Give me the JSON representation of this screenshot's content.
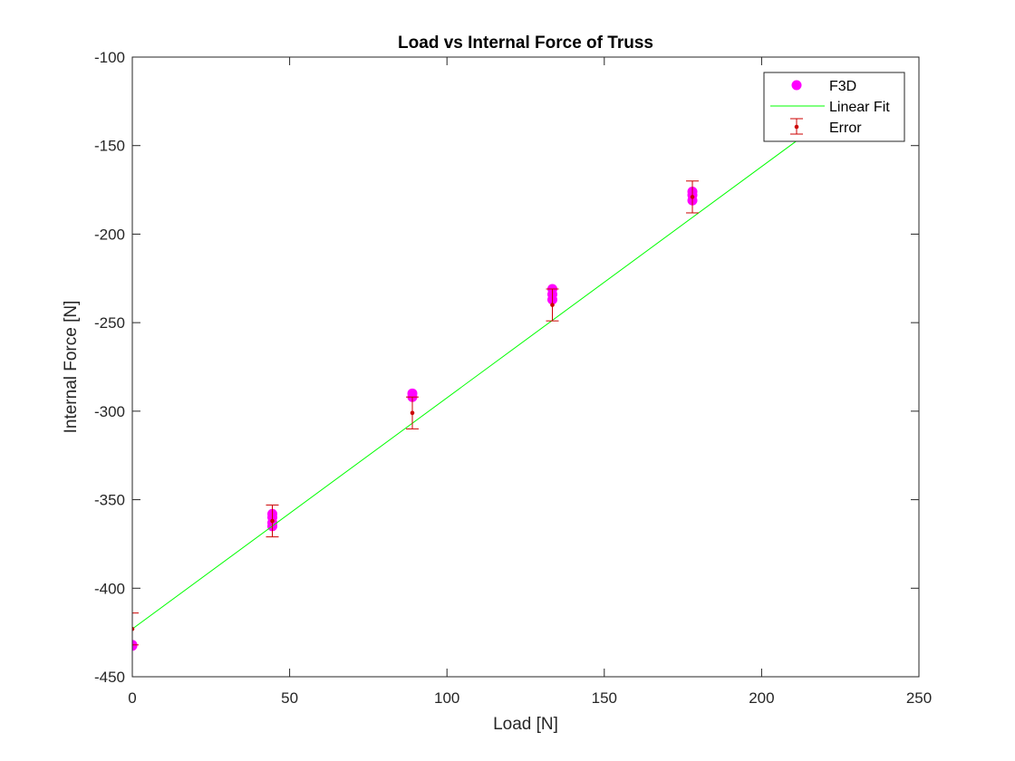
{
  "chart_data": {
    "type": "scatter",
    "title": "Load vs Internal Force of Truss",
    "xlabel": "Load [N]",
    "ylabel": "Internal Force [N]",
    "xlim": [
      0,
      250
    ],
    "ylim": [
      -450,
      -100
    ],
    "x_ticks": [
      0,
      50,
      100,
      150,
      200,
      250
    ],
    "y_ticks": [
      -450,
      -400,
      -350,
      -300,
      -250,
      -200,
      -150,
      -100
    ],
    "x_tick_labels": [
      "0",
      "50",
      "100",
      "150",
      "200",
      "250"
    ],
    "y_tick_labels": [
      "-450",
      "-400",
      "-350",
      "-300",
      "-250",
      "-200",
      "-150",
      "-100"
    ],
    "grid": false,
    "legend_position": "top-right",
    "series": [
      {
        "name": "F3D",
        "style": "markers",
        "color": "#ff00ff",
        "points": [
          {
            "x": 0,
            "y": -432
          },
          {
            "x": 0,
            "y": -432.5
          },
          {
            "x": 44.5,
            "y": -358
          },
          {
            "x": 44.5,
            "y": -360
          },
          {
            "x": 44.5,
            "y": -363
          },
          {
            "x": 44.5,
            "y": -365
          },
          {
            "x": 89,
            "y": -290
          },
          {
            "x": 89,
            "y": -292
          },
          {
            "x": 133.5,
            "y": -231
          },
          {
            "x": 133.5,
            "y": -234
          },
          {
            "x": 133.5,
            "y": -237
          },
          {
            "x": 178,
            "y": -176
          },
          {
            "x": 178,
            "y": -178
          },
          {
            "x": 178,
            "y": -181
          }
        ]
      },
      {
        "name": "Linear Fit",
        "style": "line",
        "color": "#00ff00",
        "points": [
          {
            "x": 0,
            "y": -423
          },
          {
            "x": 211,
            "y": -147.5
          }
        ]
      },
      {
        "name": "Error",
        "style": "errorbar",
        "color": "#cc0000",
        "points": [
          {
            "x": 0,
            "y": -423,
            "err": 9
          },
          {
            "x": 44.5,
            "y": -362,
            "err": 9
          },
          {
            "x": 89,
            "y": -301,
            "err": 9
          },
          {
            "x": 133.5,
            "y": -240,
            "err": 9
          },
          {
            "x": 178,
            "y": -179,
            "err": 9
          }
        ]
      }
    ]
  }
}
